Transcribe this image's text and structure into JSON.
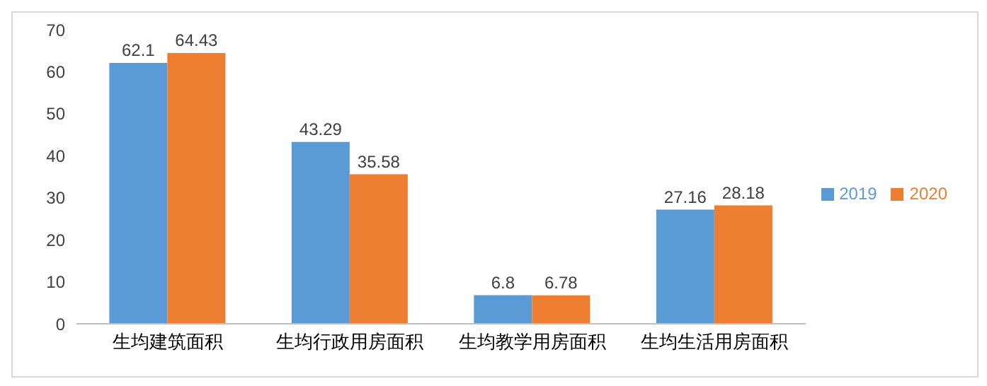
{
  "chart_data": {
    "type": "bar",
    "categories": [
      "生均建筑面积",
      "生均行政用房面积",
      "生均教学用房面积",
      "生均生活用房面积"
    ],
    "series": [
      {
        "name": "2019",
        "color": "#5b9bd5",
        "values": [
          62.1,
          43.29,
          6.8,
          27.16
        ]
      },
      {
        "name": "2020",
        "color": "#ed7d31",
        "values": [
          64.43,
          35.58,
          6.78,
          28.18
        ]
      }
    ],
    "ylim": [
      0,
      70
    ],
    "yticks": [
      0,
      10,
      20,
      30,
      40,
      50,
      60,
      70
    ],
    "grid": false,
    "legend": "right",
    "data_labels": true
  }
}
